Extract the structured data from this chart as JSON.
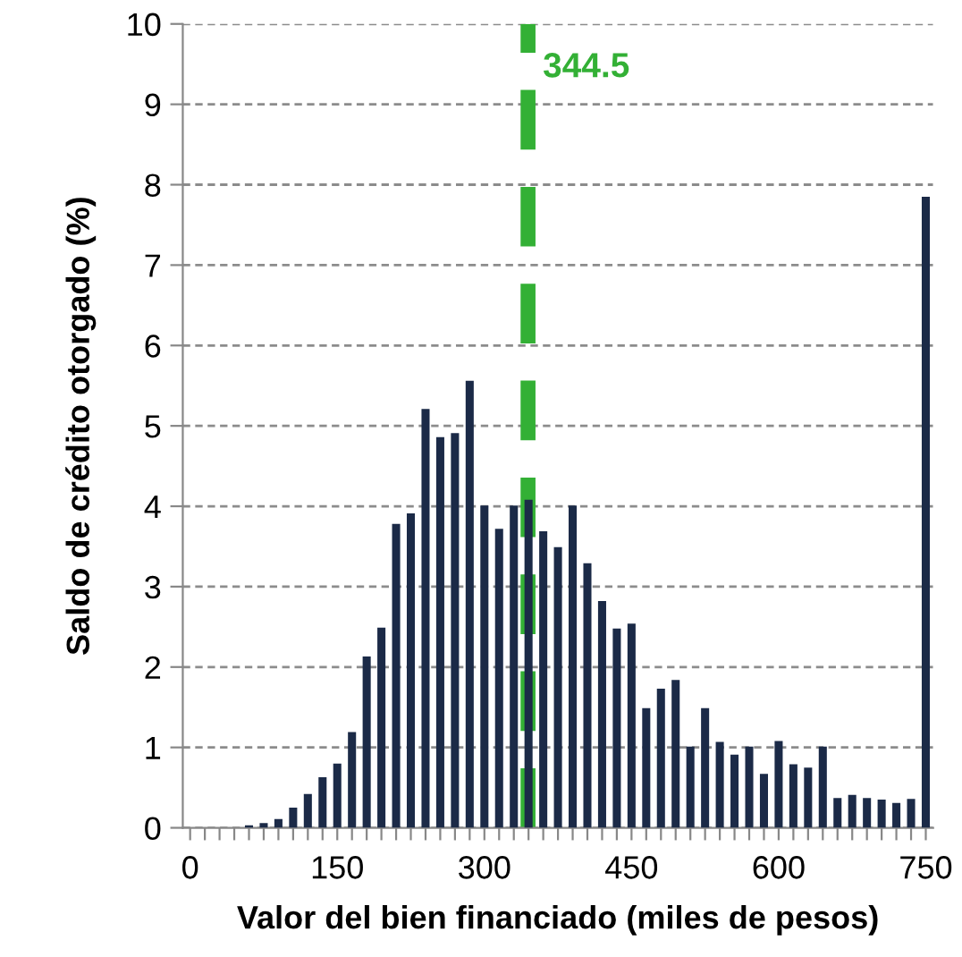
{
  "chart_data": {
    "type": "bar",
    "xlabel": "Valor del bien financiado (miles de pesos)",
    "ylabel": "Saldo de crédito otorgado (%)",
    "x": [
      0,
      15,
      30,
      45,
      60,
      75,
      90,
      105,
      120,
      135,
      150,
      165,
      180,
      195,
      210,
      225,
      240,
      255,
      270,
      285,
      300,
      315,
      330,
      345,
      360,
      375,
      390,
      405,
      420,
      435,
      450,
      465,
      480,
      495,
      510,
      525,
      540,
      555,
      570,
      585,
      600,
      615,
      630,
      645,
      660,
      675,
      690,
      705,
      720,
      735,
      750
    ],
    "series": [
      {
        "color": "#1b2a47",
        "values": [
          0,
          0,
          0,
          0,
          0.03,
          0.06,
          0.11,
          0.25,
          0.42,
          0.63,
          0.8,
          1.19,
          2.13,
          2.49,
          3.78,
          3.91,
          5.21,
          4.86,
          4.91,
          5.56,
          4.01,
          3.72,
          4.01,
          4.08,
          3.69,
          3.49,
          4.01,
          3.29,
          2.82,
          2.48,
          2.54,
          1.49,
          1.73,
          1.84,
          1.01,
          1.49,
          1.07,
          0.91,
          1.01,
          0.67,
          1.08,
          0.79,
          0.75,
          1.01,
          0.37,
          0.41,
          0.37,
          0.35,
          0.31,
          0.36,
          7.85
        ]
      }
    ],
    "xlim": [
      -7.5,
      757.5
    ],
    "xticks": [
      0,
      {
        "value": 15,
        "label": null
      },
      {
        "value": 30,
        "label": null
      },
      {
        "value": 45,
        "label": null
      },
      {
        "value": 60,
        "label": null
      },
      {
        "value": 75,
        "label": null
      },
      {
        "value": 90,
        "label": null
      },
      {
        "value": 105,
        "label": null
      },
      {
        "value": 120,
        "label": null
      },
      {
        "value": 135,
        "label": null
      },
      150,
      {
        "value": 165,
        "label": null
      },
      {
        "value": 180,
        "label": null
      },
      {
        "value": 195,
        "label": null
      },
      {
        "value": 210,
        "label": null
      },
      {
        "value": 225,
        "label": null
      },
      {
        "value": 240,
        "label": null
      },
      {
        "value": 255,
        "label": null
      },
      {
        "value": 270,
        "label": null
      },
      {
        "value": 285,
        "label": null
      },
      300,
      {
        "value": 315,
        "label": null
      },
      {
        "value": 330,
        "label": null
      },
      {
        "value": 345,
        "label": null
      },
      {
        "value": 360,
        "label": null
      },
      {
        "value": 375,
        "label": null
      },
      {
        "value": 390,
        "label": null
      },
      {
        "value": 405,
        "label": null
      },
      {
        "value": 420,
        "label": null
      },
      {
        "value": 435,
        "label": null
      },
      450,
      {
        "value": 465,
        "label": null
      },
      {
        "value": 480,
        "label": null
      },
      {
        "value": 495,
        "label": null
      },
      {
        "value": 510,
        "label": null
      },
      {
        "value": 525,
        "label": null
      },
      {
        "value": 540,
        "label": null
      },
      {
        "value": 555,
        "label": null
      },
      {
        "value": 570,
        "label": null
      },
      {
        "value": 585,
        "label": null
      },
      600,
      {
        "value": 615,
        "label": null
      },
      {
        "value": 630,
        "label": null
      },
      {
        "value": 645,
        "label": null
      },
      {
        "value": 660,
        "label": null
      },
      {
        "value": 675,
        "label": null
      },
      {
        "value": 690,
        "label": null
      },
      {
        "value": 705,
        "label": null
      },
      {
        "value": 720,
        "label": null
      },
      {
        "value": 735,
        "label": null
      },
      750
    ],
    "ylim": [
      0,
      10
    ],
    "yticks": [
      0,
      1,
      2,
      3,
      4,
      5,
      6,
      7,
      8,
      9,
      10
    ],
    "grid": "y",
    "ref_lines": [
      {
        "axis": "x",
        "value": 344.5,
        "label": "344.5",
        "color": "#33b035",
        "line_style": "dashed"
      }
    ]
  }
}
